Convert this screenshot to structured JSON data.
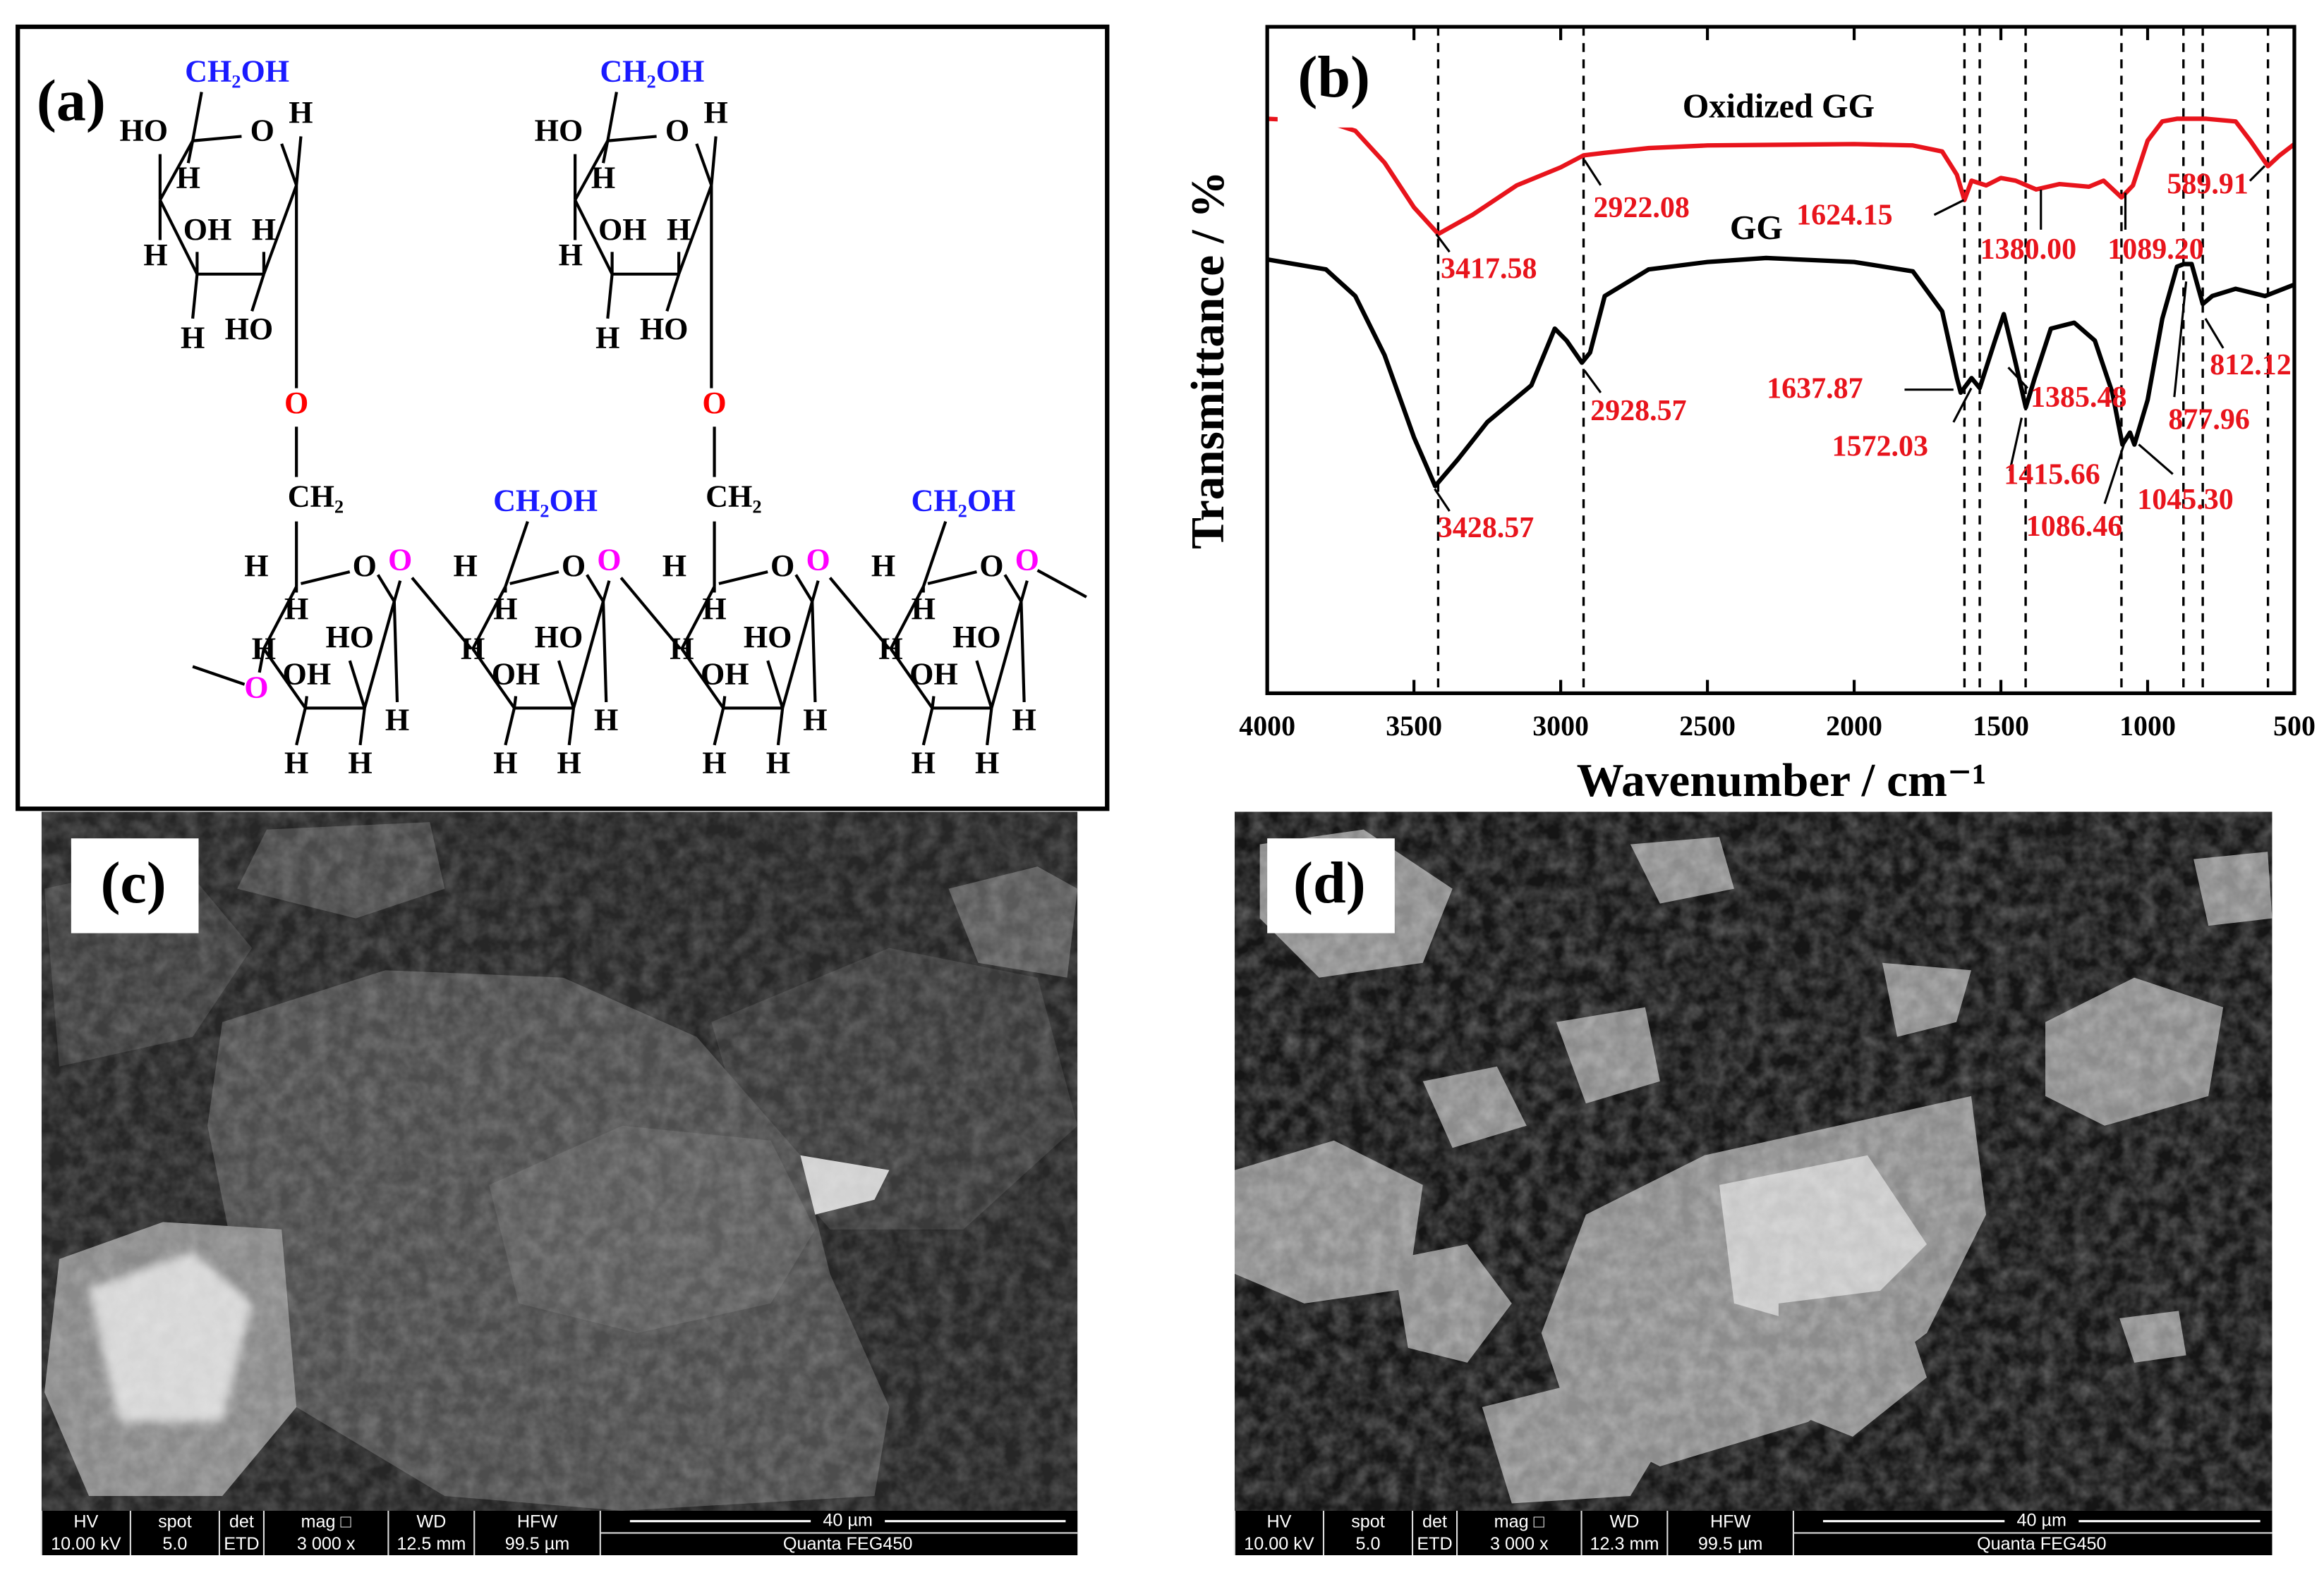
{
  "panel_labels": [
    "(a)",
    "(b)",
    "(c)",
    "(d)"
  ],
  "structure": {
    "top_units": [
      {
        "atoms": [
          "CH₂OH",
          "HO",
          "O",
          "H",
          "H",
          "OH",
          "H",
          "H",
          "H",
          "HO"
        ]
      },
      {
        "atoms": [
          "CH₂OH",
          "HO",
          "O",
          "H",
          "H",
          "OH",
          "H",
          "H",
          "H",
          "HO"
        ]
      }
    ],
    "bottom_units": [
      {
        "atoms": [
          "H",
          "O",
          "O",
          "H",
          "H",
          "HO",
          "OH",
          "H",
          "H",
          "H"
        ],
        "substituent": [
          "CH₂",
          "O"
        ],
        "left_o": "O"
      },
      {
        "atoms": [
          "H",
          "O",
          "O",
          "H",
          "H",
          "HO",
          "OH",
          "H",
          "H",
          "H"
        ],
        "substituent": [
          "CH₂OH"
        ]
      },
      {
        "atoms": [
          "H",
          "O",
          "O",
          "H",
          "H",
          "HO",
          "OH",
          "H",
          "H",
          "H"
        ],
        "substituent": [
          "CH₂",
          "O"
        ]
      },
      {
        "atoms": [
          "H",
          "O",
          "O",
          "H",
          "H",
          "HO",
          "OH",
          "H",
          "H",
          "H"
        ],
        "substituent": [
          "CH₂OH"
        ]
      }
    ]
  },
  "chart_data": {
    "type": "line",
    "x_label": "Wavenumber / cm⁻¹",
    "y_label": "Transmittance / %",
    "xlim": [
      4000,
      500
    ],
    "xticks": [
      4000,
      3500,
      3000,
      2500,
      2000,
      1500,
      1000,
      500
    ],
    "ylim": [
      0,
      100
    ],
    "series": [
      {
        "name": "Oxidized GG",
        "color": "#e8141c",
        "x": [
          4000,
          3800,
          3700,
          3600,
          3500,
          3417,
          3300,
          3150,
          3000,
          2922,
          2850,
          2700,
          2500,
          2000,
          1800,
          1700,
          1650,
          1624,
          1600,
          1550,
          1500,
          1450,
          1380,
          1300,
          1200,
          1150,
          1089,
          1050,
          1000,
          950,
          900,
          800,
          700,
          650,
          590,
          550,
          500
        ],
        "values": [
          86.2,
          85.8,
          84.4,
          79.6,
          72.9,
          68.9,
          71.8,
          76.2,
          78.9,
          80.7,
          81.1,
          81.8,
          82.2,
          82.4,
          82.2,
          81.3,
          77.8,
          74.0,
          76.9,
          76.2,
          77.3,
          76.9,
          75.6,
          76.4,
          76.0,
          76.9,
          74.4,
          76.2,
          82.9,
          85.8,
          86.2,
          86.2,
          85.8,
          82.9,
          79.1,
          80.7,
          82.4
        ]
      },
      {
        "name": "GG",
        "color": "#000000",
        "x": [
          4000,
          3800,
          3700,
          3600,
          3500,
          3428,
          3350,
          3250,
          3100,
          3020,
          2980,
          2928,
          2900,
          2850,
          2700,
          2500,
          2300,
          2000,
          1800,
          1700,
          1650,
          1637,
          1600,
          1572,
          1520,
          1490,
          1450,
          1415,
          1385,
          1330,
          1250,
          1180,
          1120,
          1086,
          1060,
          1045,
          1000,
          950,
          900,
          877,
          850,
          812,
          780,
          700,
          600,
          500
        ],
        "values": [
          65.1,
          63.6,
          59.6,
          50.7,
          38.4,
          31.1,
          35.1,
          40.7,
          46.2,
          54.7,
          52.9,
          49.6,
          51.1,
          59.6,
          63.6,
          64.7,
          65.3,
          64.7,
          63.3,
          57.3,
          47.3,
          45.1,
          47.3,
          45.8,
          52.9,
          56.9,
          49.6,
          42.9,
          47.3,
          54.7,
          55.6,
          52.9,
          45.1,
          37.3,
          39.1,
          37.3,
          44.0,
          56.2,
          64.0,
          64.4,
          64.4,
          58.4,
          59.6,
          60.7,
          59.6,
          61.3
        ]
      }
    ],
    "reference_lines": [
      3417.58,
      2922.08,
      1624.15,
      1572.03,
      1415.66,
      1089.2,
      877.96,
      812.12,
      589.91
    ],
    "annotations": [
      "3417.58",
      "2922.08",
      "1624.15",
      "1380.00",
      "1089.20",
      "589.91",
      "3428.57",
      "2928.57",
      "1637.87",
      "1572.03",
      "1385.48",
      "1415.66",
      "1086.46",
      "1045.30",
      "877.96",
      "812.12"
    ]
  },
  "sem_images": [
    {
      "info_headers": [
        "HV",
        "spot",
        "det",
        "mag □",
        "WD",
        "HFW"
      ],
      "info_values": [
        "10.00 kV",
        "5.0",
        "ETD",
        "3 000 x",
        "12.5 mm",
        "99.5 µm"
      ],
      "scale_bar": "40 µm",
      "instrument": "Quanta FEG450"
    },
    {
      "info_headers": [
        "HV",
        "spot",
        "det",
        "mag □",
        "WD",
        "HFW"
      ],
      "info_values": [
        "10.00 kV",
        "5.0",
        "ETD",
        "3 000 x",
        "12.3 mm",
        "99.5 µm"
      ],
      "scale_bar": "40 µm",
      "instrument": "Quanta FEG450"
    }
  ]
}
